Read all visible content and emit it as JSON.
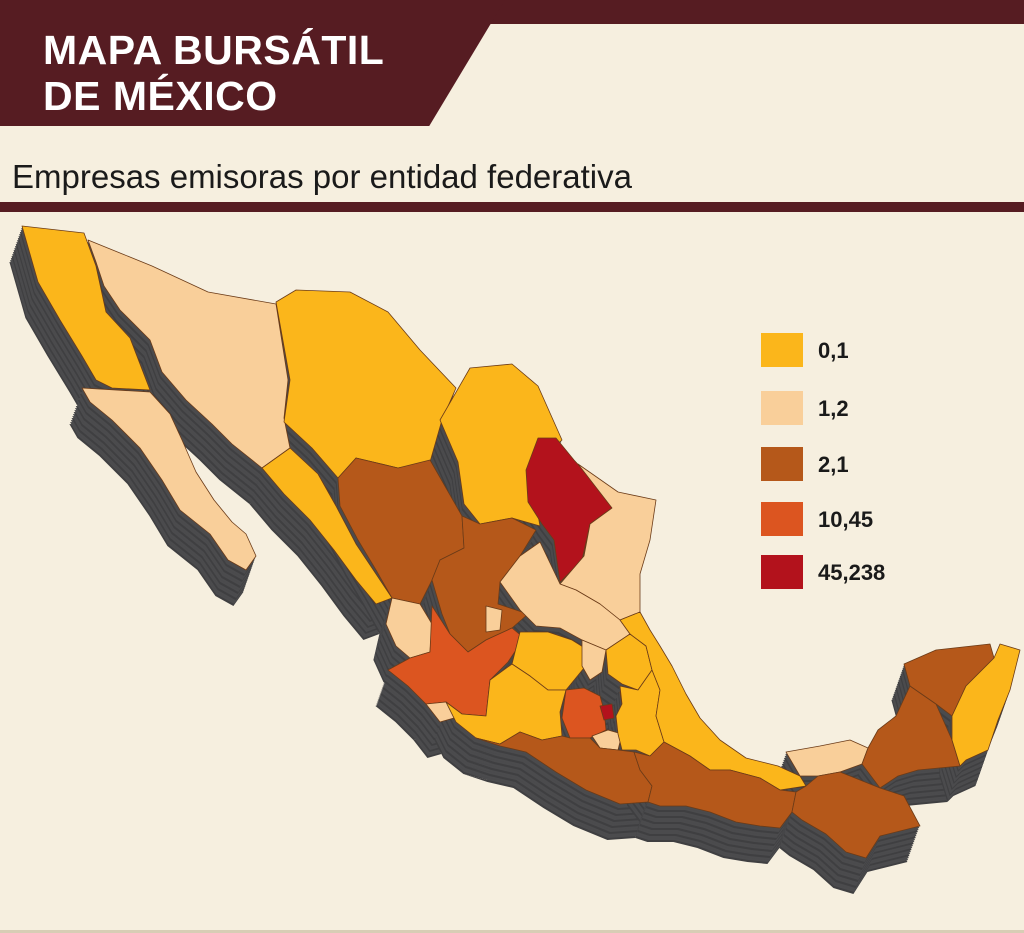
{
  "header": {
    "title_line1": "MAPA BURSÁTIL",
    "title_line2": "DE MÉXICO",
    "subtitle": "Empresas emisoras por entidad federativa"
  },
  "legend": [
    {
      "label": "0,1",
      "color": "#fbb61b"
    },
    {
      "label": "1,2",
      "color": "#f9cf9a"
    },
    {
      "label": "2,1",
      "color": "#b5581a"
    },
    {
      "label": "10,45",
      "color": "#dc5520"
    },
    {
      "label": "45,238",
      "color": "#b3121c"
    }
  ],
  "colors": {
    "header_band": "#561c22",
    "background": "#f6efdf",
    "extrusion": "#4b4b4d",
    "border": "#6b3b18"
  },
  "map": {
    "regions": [
      {
        "id": "baja-california",
        "category": "0,1"
      },
      {
        "id": "baja-california-sur",
        "category": "1,2"
      },
      {
        "id": "sonora",
        "category": "1,2"
      },
      {
        "id": "chihuahua",
        "category": "0,1"
      },
      {
        "id": "coahuila",
        "category": "0,1"
      },
      {
        "id": "nuevo-leon",
        "category": "45,238"
      },
      {
        "id": "tamaulipas",
        "category": "1,2"
      },
      {
        "id": "sinaloa",
        "category": "0,1"
      },
      {
        "id": "durango",
        "category": "2,1"
      },
      {
        "id": "zacatecas",
        "category": "2,1"
      },
      {
        "id": "nayarit",
        "category": "1,2"
      },
      {
        "id": "jalisco",
        "category": "10,45"
      },
      {
        "id": "aguascalientes",
        "category": "1,2"
      },
      {
        "id": "san-luis-potosi",
        "category": "1,2"
      },
      {
        "id": "guanajuato",
        "category": "0,1"
      },
      {
        "id": "queretaro",
        "category": "1,2"
      },
      {
        "id": "hidalgo",
        "category": "0,1"
      },
      {
        "id": "colima",
        "category": "1,2"
      },
      {
        "id": "michoacan",
        "category": "0,1"
      },
      {
        "id": "estado-de-mexico",
        "category": "10,45"
      },
      {
        "id": "ciudad-de-mexico",
        "category": "45,238"
      },
      {
        "id": "morelos",
        "category": "1,2"
      },
      {
        "id": "tlaxcala",
        "category": "1,2"
      },
      {
        "id": "puebla",
        "category": "0,1"
      },
      {
        "id": "veracruz",
        "category": "0,1"
      },
      {
        "id": "guerrero",
        "category": "2,1"
      },
      {
        "id": "oaxaca",
        "category": "2,1"
      },
      {
        "id": "tabasco",
        "category": "1,2"
      },
      {
        "id": "chiapas",
        "category": "2,1"
      },
      {
        "id": "campeche",
        "category": "2,1"
      },
      {
        "id": "yucatan",
        "category": "2,1"
      },
      {
        "id": "quintana-roo",
        "category": "0,1"
      }
    ]
  }
}
